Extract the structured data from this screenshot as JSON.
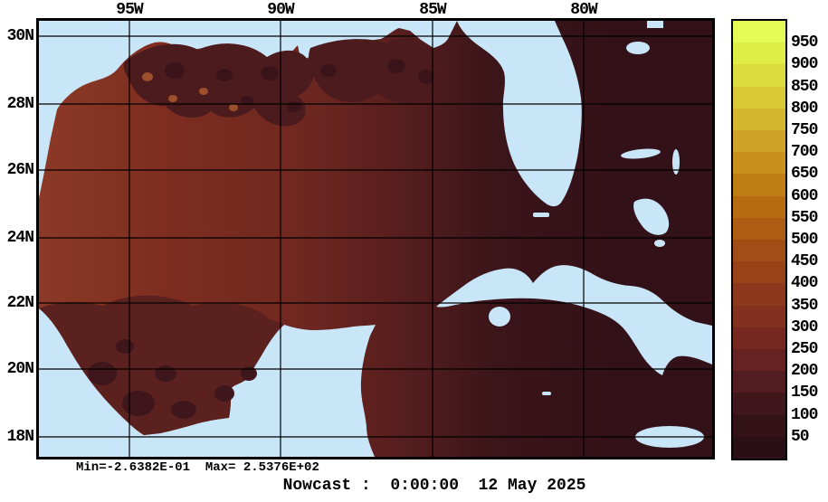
{
  "title": {
    "text": "Nowcast :  0:00:00  12 May 2025"
  },
  "stats": {
    "text": "Min=-2.6382E-01  Max= 2.5376E+02"
  },
  "axes": {
    "x_ticks": [
      "95W",
      "90W",
      "85W",
      "80W"
    ],
    "y_ticks": [
      "30N",
      "28N",
      "26N",
      "24N",
      "22N",
      "20N",
      "18N"
    ]
  },
  "colorbar": {
    "labels_top_to_bottom": [
      "950",
      "900",
      "850",
      "800",
      "750",
      "700",
      "650",
      "600",
      "550",
      "500",
      "450",
      "400",
      "350",
      "300",
      "250",
      "200",
      "150",
      "100",
      "50"
    ],
    "colors_top_to_bottom": [
      "#e3fb55",
      "#dfee47",
      "#dcdc3f",
      "#d9c937",
      "#d5b62f",
      "#cfa327",
      "#c9901e",
      "#c07d14",
      "#b76c11",
      "#ad5d13",
      "#a24d15",
      "#984218",
      "#8d381c",
      "#84301f",
      "#762720",
      "#652221",
      "#521c20",
      "#40171d",
      "#331318",
      "#2a1016"
    ]
  },
  "colors": {
    "land": "#c9e5f8",
    "grid": "#000000",
    "frame": "#000000",
    "ocean_west": "#8c3a26",
    "ocean_center": "#7e2d20",
    "ocean_mid": "#5a1f1e",
    "ocean_east": "#3a151a",
    "ocean_deep": "#331118",
    "shelf_dark": "#4c1b1d",
    "shelf_spot": "#3a141a",
    "shelf_light": "#9d4f2c",
    "campeche": "#5a211f",
    "campeche_spot": "#3e161b"
  },
  "chart_data": {
    "type": "heatmap",
    "title": "Nowcast :  0:00:00  12 May 2025",
    "region": "Gulf of Mexico / Caribbean",
    "x_tick_labels": [
      "95W",
      "90W",
      "85W",
      "80W"
    ],
    "y_tick_labels": [
      "30N",
      "28N",
      "26N",
      "24N",
      "22N",
      "20N",
      "18N"
    ],
    "colorbar_levels": [
      50,
      100,
      150,
      200,
      250,
      300,
      350,
      400,
      450,
      500,
      550,
      600,
      650,
      700,
      750,
      800,
      850,
      900,
      950
    ],
    "field_min": -0.26382,
    "field_max": 253.76,
    "grid": true,
    "legend_position": "right-colorbar",
    "notes": "Field values over water shown in dark maroon (low) to brick red (~250-300 in western Gulf); land masked light blue"
  }
}
